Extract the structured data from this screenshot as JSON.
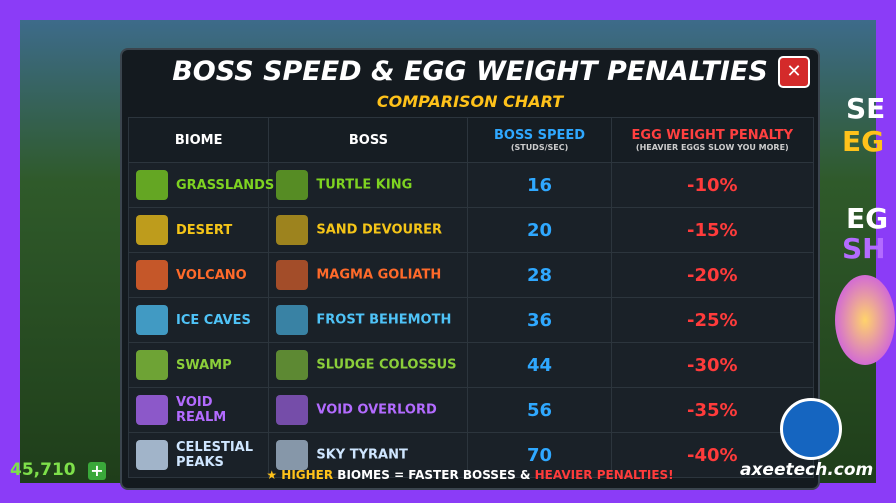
{
  "header": {
    "title": "BOSS SPEED & EGG WEIGHT PENALTIES",
    "subtitle": "COMPARISON CHART"
  },
  "table": {
    "columns": [
      {
        "label": "BIOME"
      },
      {
        "label": "BOSS"
      },
      {
        "label": "BOSS SPEED",
        "sublabel": "(STUDS/SEC)"
      },
      {
        "label": "EGG WEIGHT PENALTY",
        "sublabel": "(HEAVIER EGGS SLOW YOU MORE)"
      }
    ],
    "rows": [
      {
        "biome": "GRASSLANDS",
        "boss": "TURTLE KING",
        "speed": 16,
        "penalty": "-10%",
        "color": "#7ed321"
      },
      {
        "biome": "DESERT",
        "boss": "SAND DEVOURER",
        "speed": 20,
        "penalty": "-15%",
        "color": "#f5c518"
      },
      {
        "biome": "VOLCANO",
        "boss": "MAGMA GOLIATH",
        "speed": 28,
        "penalty": "-20%",
        "color": "#ff6a2a"
      },
      {
        "biome": "ICE CAVES",
        "boss": "FROST BEHEMOTH",
        "speed": 36,
        "penalty": "-25%",
        "color": "#4fc3f7"
      },
      {
        "biome": "SWAMP",
        "boss": "SLUDGE COLOSSUS",
        "speed": 44,
        "penalty": "-30%",
        "color": "#8bcf3a"
      },
      {
        "biome": "VOID REALM",
        "boss": "VOID OVERLORD",
        "speed": 56,
        "penalty": "-35%",
        "color": "#b36bff"
      },
      {
        "biome": "CELESTIAL PEAKS",
        "boss": "SKY TYRANT",
        "speed": 70,
        "penalty": "-40%",
        "color": "#cfe6ff"
      }
    ]
  },
  "footer": {
    "parts": [
      {
        "text": "HIGHER",
        "color": "#ffc21a"
      },
      {
        "text": " BIOMES = FASTER BOSSES & ",
        "color": "#ffffff"
      },
      {
        "text": "HEAVIER PENALTIES!",
        "color": "#ff3b3b"
      }
    ]
  },
  "side": {
    "texts": [
      "SE",
      "EG",
      "EG",
      "SH"
    ],
    "coins": "45,710",
    "watermark": "axeetech.com"
  }
}
